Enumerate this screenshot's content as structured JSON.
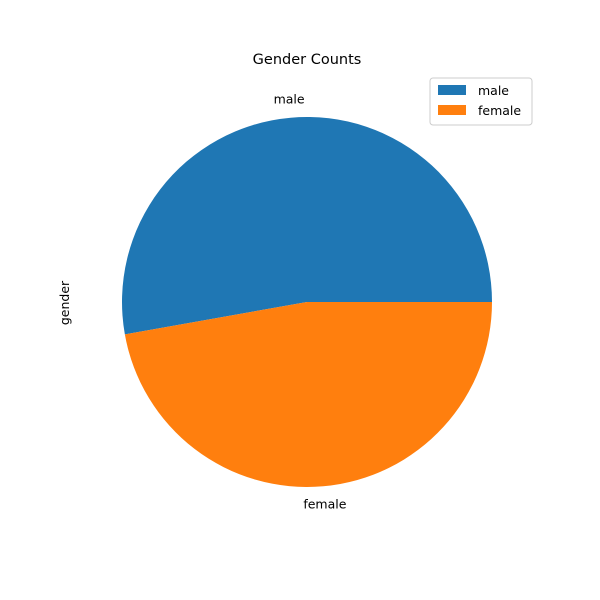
{
  "chart_data": {
    "type": "pie",
    "title": "Gender Counts",
    "ylabel": "gender",
    "categories": [
      "male",
      "female"
    ],
    "values": [
      52.8,
      47.2
    ],
    "colors": [
      "#1f77b4",
      "#ff7f0e"
    ],
    "start_angle_deg": 0,
    "direction": "counterclockwise",
    "legend": {
      "position": "top-right",
      "entries": [
        "male",
        "female"
      ]
    }
  }
}
